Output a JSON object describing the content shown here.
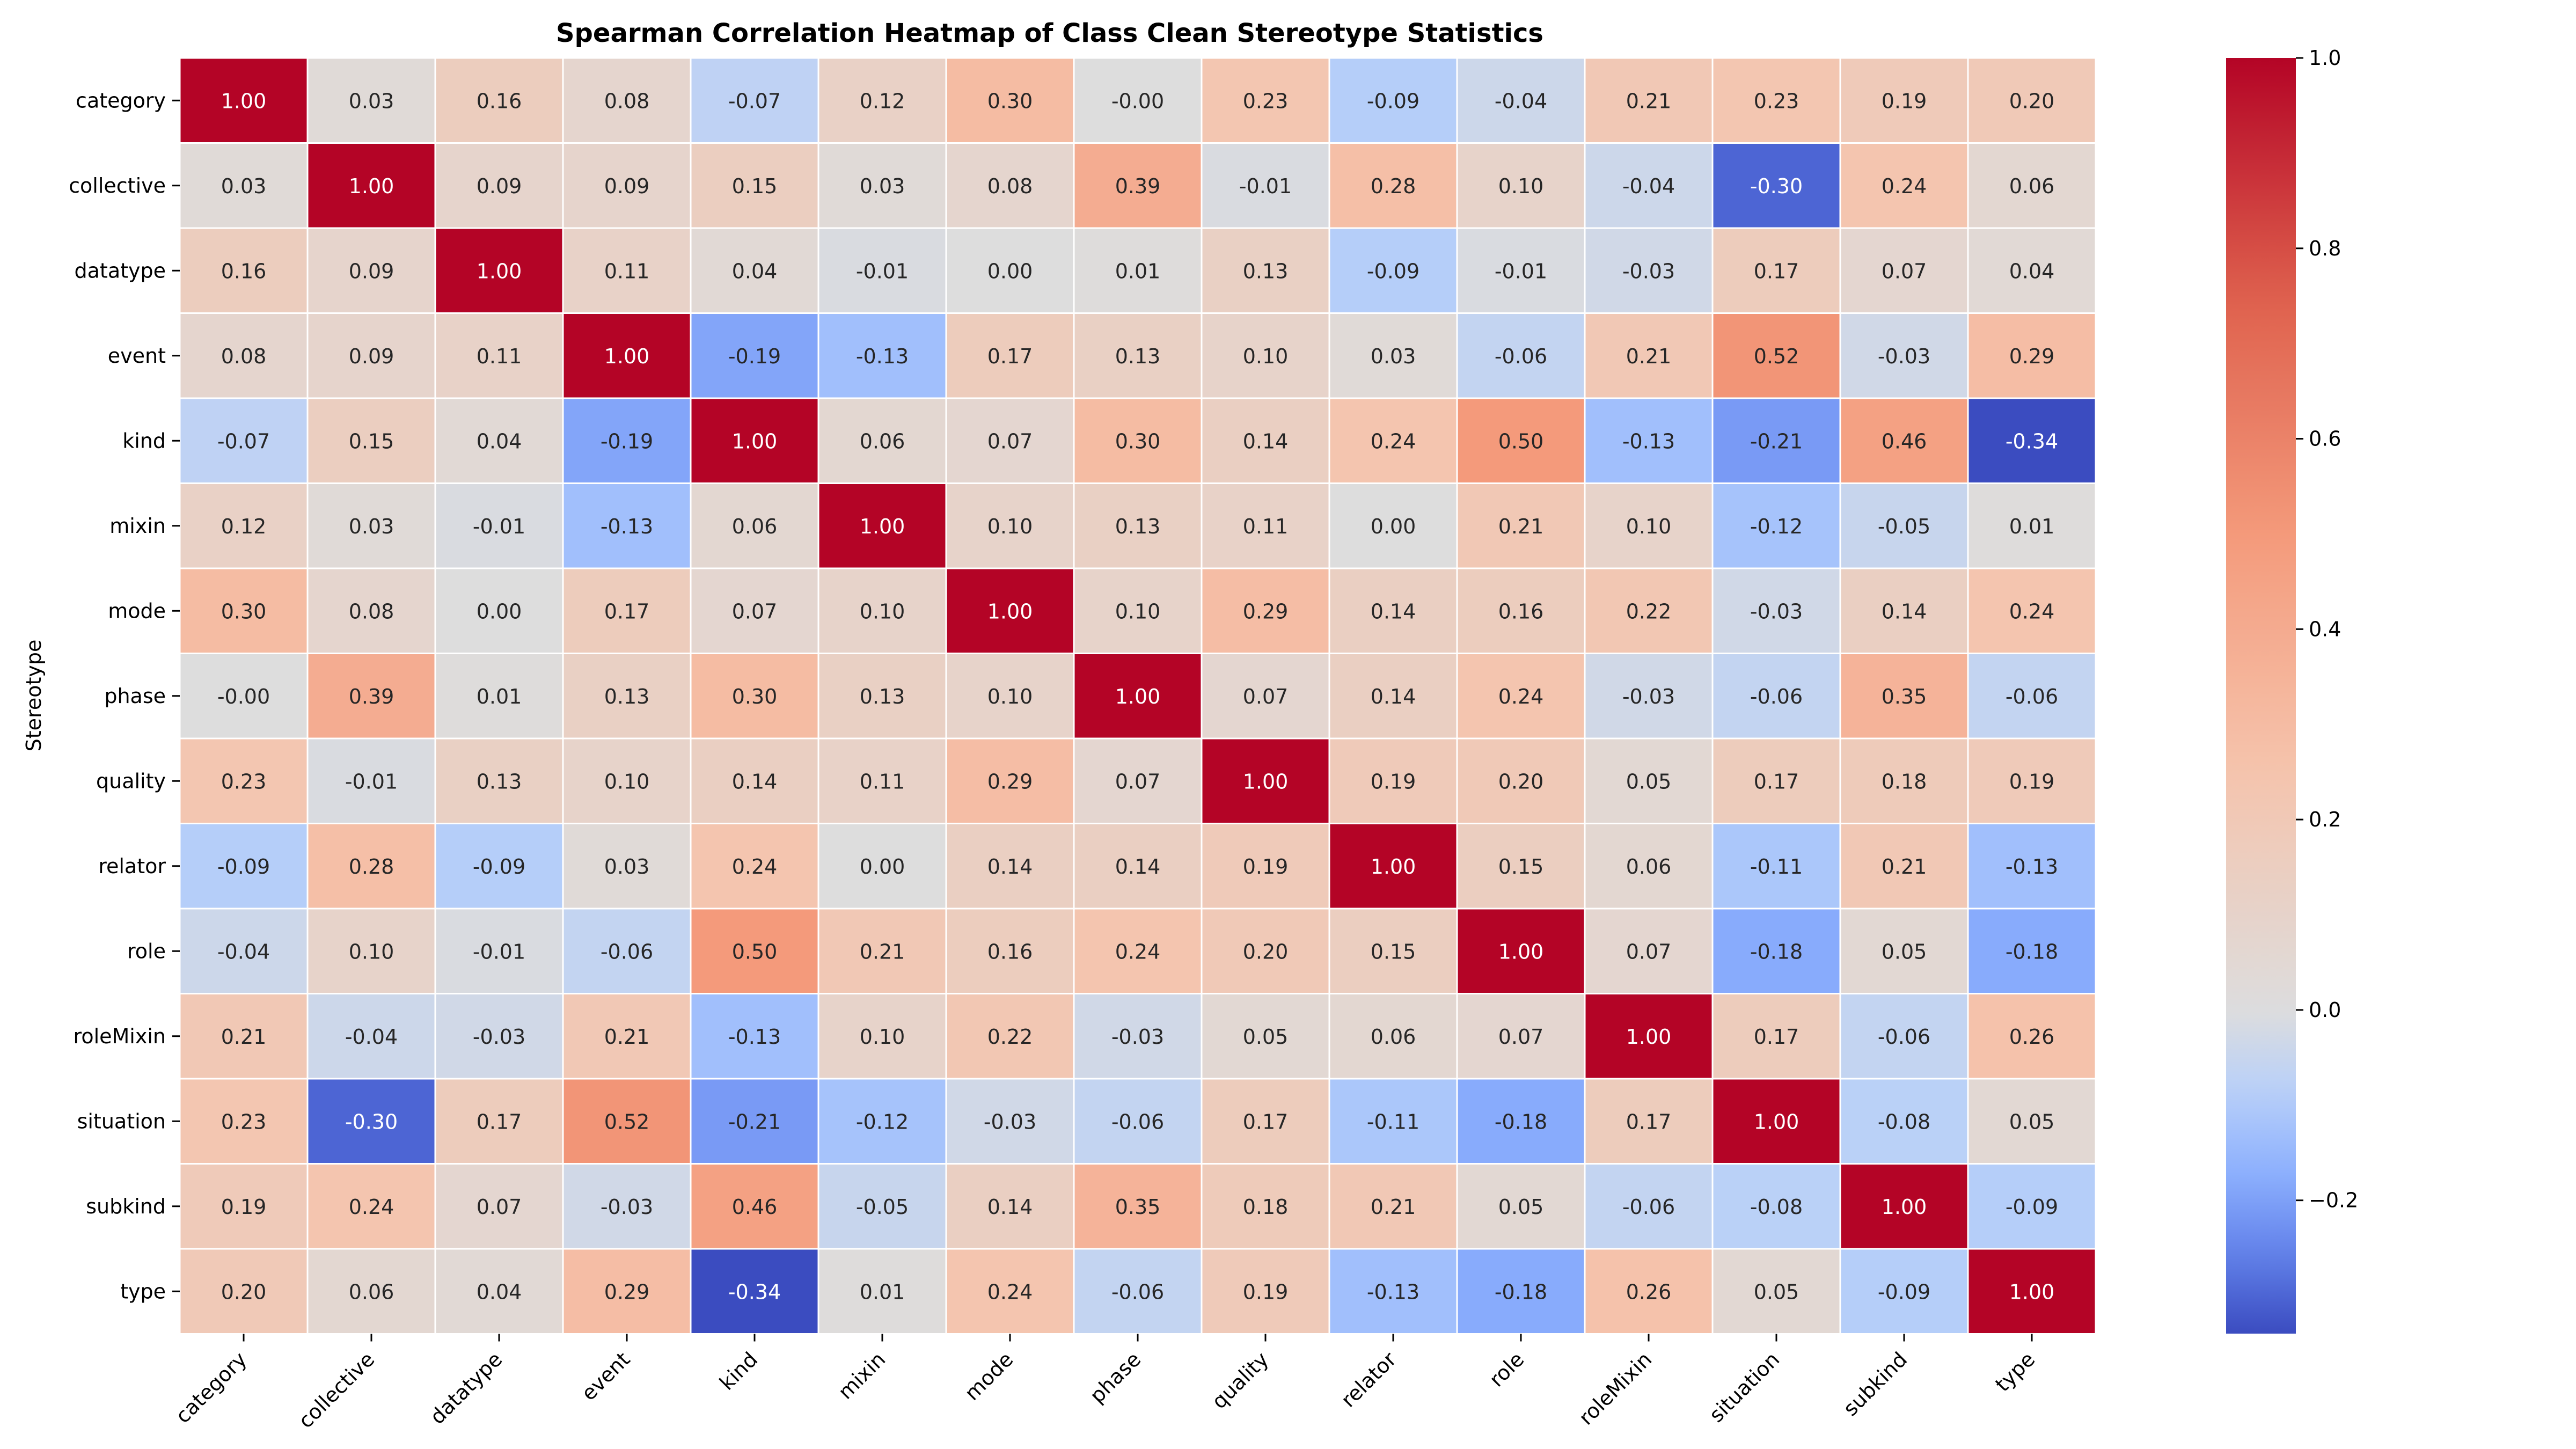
{
  "chart_data": {
    "type": "heatmap",
    "title": "Spearman Correlation Heatmap of Class Clean Stereotype Statistics",
    "xlabel": "",
    "ylabel": "Stereotype",
    "x_categories": [
      "category",
      "collective",
      "datatype",
      "event",
      "kind",
      "mixin",
      "mode",
      "phase",
      "quality",
      "relator",
      "role",
      "roleMixin",
      "situation",
      "subkind",
      "type"
    ],
    "y_categories": [
      "category",
      "collective",
      "datatype",
      "event",
      "kind",
      "mixin",
      "mode",
      "phase",
      "quality",
      "relator",
      "role",
      "roleMixin",
      "situation",
      "subkind",
      "type"
    ],
    "values": [
      [
        1.0,
        0.03,
        0.16,
        0.08,
        -0.07,
        0.12,
        0.3,
        -0.0,
        0.23,
        -0.09,
        -0.04,
        0.21,
        0.23,
        0.19,
        0.2
      ],
      [
        0.03,
        1.0,
        0.09,
        0.09,
        0.15,
        0.03,
        0.08,
        0.39,
        -0.01,
        0.28,
        0.1,
        -0.04,
        -0.3,
        0.24,
        0.06
      ],
      [
        0.16,
        0.09,
        1.0,
        0.11,
        0.04,
        -0.01,
        0.0,
        0.01,
        0.13,
        -0.09,
        -0.01,
        -0.03,
        0.17,
        0.07,
        0.04
      ],
      [
        0.08,
        0.09,
        0.11,
        1.0,
        -0.19,
        -0.13,
        0.17,
        0.13,
        0.1,
        0.03,
        -0.06,
        0.21,
        0.52,
        -0.03,
        0.29
      ],
      [
        -0.07,
        0.15,
        0.04,
        -0.19,
        1.0,
        0.06,
        0.07,
        0.3,
        0.14,
        0.24,
        0.5,
        -0.13,
        -0.21,
        0.46,
        -0.34
      ],
      [
        0.12,
        0.03,
        -0.01,
        -0.13,
        0.06,
        1.0,
        0.1,
        0.13,
        0.11,
        0.0,
        0.21,
        0.1,
        -0.12,
        -0.05,
        0.01
      ],
      [
        0.3,
        0.08,
        0.0,
        0.17,
        0.07,
        0.1,
        1.0,
        0.1,
        0.29,
        0.14,
        0.16,
        0.22,
        -0.03,
        0.14,
        0.24
      ],
      [
        -0.0,
        0.39,
        0.01,
        0.13,
        0.3,
        0.13,
        0.1,
        1.0,
        0.07,
        0.14,
        0.24,
        -0.03,
        -0.06,
        0.35,
        -0.06
      ],
      [
        0.23,
        -0.01,
        0.13,
        0.1,
        0.14,
        0.11,
        0.29,
        0.07,
        1.0,
        0.19,
        0.2,
        0.05,
        0.17,
        0.18,
        0.19
      ],
      [
        -0.09,
        0.28,
        -0.09,
        0.03,
        0.24,
        0.0,
        0.14,
        0.14,
        0.19,
        1.0,
        0.15,
        0.06,
        -0.11,
        0.21,
        -0.13
      ],
      [
        -0.04,
        0.1,
        -0.01,
        -0.06,
        0.5,
        0.21,
        0.16,
        0.24,
        0.2,
        0.15,
        1.0,
        0.07,
        -0.18,
        0.05,
        -0.18
      ],
      [
        0.21,
        -0.04,
        -0.03,
        0.21,
        -0.13,
        0.1,
        0.22,
        -0.03,
        0.05,
        0.06,
        0.07,
        1.0,
        0.17,
        -0.06,
        0.26
      ],
      [
        0.23,
        -0.3,
        0.17,
        0.52,
        -0.21,
        -0.12,
        -0.03,
        -0.06,
        0.17,
        -0.11,
        -0.18,
        0.17,
        1.0,
        -0.08,
        0.05
      ],
      [
        0.19,
        0.24,
        0.07,
        -0.03,
        0.46,
        -0.05,
        0.14,
        0.35,
        0.18,
        0.21,
        0.05,
        -0.06,
        -0.08,
        1.0,
        -0.09
      ],
      [
        0.2,
        0.06,
        0.04,
        0.29,
        -0.34,
        0.01,
        0.24,
        -0.06,
        0.19,
        -0.13,
        -0.18,
        0.26,
        0.05,
        -0.09,
        1.0
      ]
    ],
    "value_format": "2 decimals",
    "colormap": "coolwarm",
    "colorbar": {
      "vmin": -0.34,
      "vmax": 1.0,
      "ticks": [
        -0.2,
        0.0,
        0.2,
        0.4,
        0.6,
        0.8,
        1.0
      ],
      "tick_labels": [
        "−0.2",
        "0.0",
        "0.2",
        "0.4",
        "0.6",
        "0.8",
        "1.0"
      ]
    },
    "grid": "white cell separators",
    "legend": "colorbar-right"
  }
}
